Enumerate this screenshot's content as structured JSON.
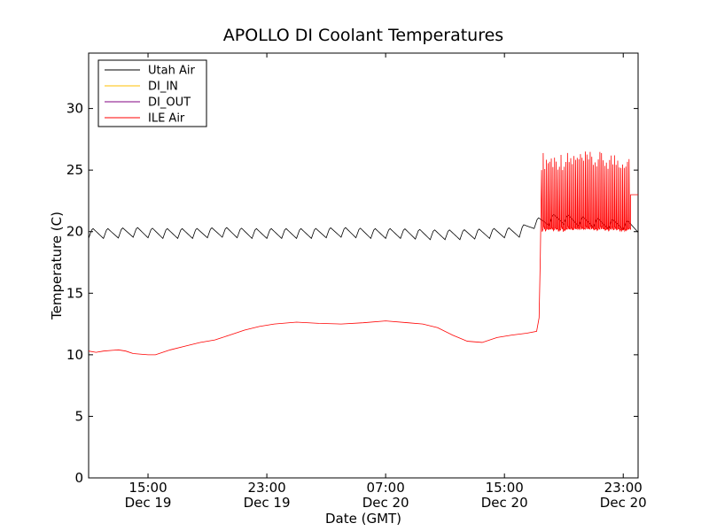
{
  "chart_data": {
    "type": "line",
    "title": "APOLLO DI Coolant Temperatures",
    "xlabel": "Date (GMT)",
    "ylabel": "Temperature (C)",
    "xlim": [
      "2014-12-19 11:00",
      "2014-12-21 00:00"
    ],
    "ylim": [
      0,
      34.5
    ],
    "yticks": [
      0,
      5,
      10,
      15,
      20,
      25,
      30
    ],
    "xticks": [
      {
        "time": "2014-12-19 15:00",
        "line1": "15:00",
        "line2": "Dec 19"
      },
      {
        "time": "2014-12-19 23:00",
        "line1": "23:00",
        "line2": "Dec 19"
      },
      {
        "time": "2014-12-20 07:00",
        "line1": "07:00",
        "line2": "Dec 20"
      },
      {
        "time": "2014-12-20 15:00",
        "line1": "15:00",
        "line2": "Dec 20"
      },
      {
        "time": "2014-12-20 23:00",
        "line1": "23:00",
        "line2": "Dec 20"
      }
    ],
    "grid": false,
    "legend_position": "top-left",
    "series": [
      {
        "name": "Utah Air",
        "color": "#000000",
        "x": [
          "2014-12-19 11:00",
          "2014-12-19 12:30",
          "2014-12-19 14:00",
          "2014-12-19 16:00",
          "2014-12-19 18:00",
          "2014-12-19 20:00",
          "2014-12-19 22:00",
          "2014-12-20 00:00",
          "2014-12-20 02:00",
          "2014-12-20 04:00",
          "2014-12-20 06:00",
          "2014-12-20 08:00",
          "2014-12-20 10:00",
          "2014-12-20 12:00",
          "2014-12-20 14:00",
          "2014-12-20 16:00",
          "2014-12-20 17:00",
          "2014-12-20 18:30",
          "2014-12-20 20:00",
          "2014-12-20 21:30",
          "2014-12-20 23:00",
          "2014-12-21 00:00"
        ],
        "y": [
          19.8,
          19.8,
          19.9,
          19.8,
          19.8,
          19.9,
          19.8,
          19.8,
          19.8,
          19.9,
          19.8,
          19.8,
          19.7,
          19.7,
          19.8,
          19.9,
          20.6,
          21.0,
          20.8,
          20.6,
          20.5,
          20.3
        ],
        "oscillation_amplitude": 0.5,
        "oscillation_period_hours": 1.0
      },
      {
        "name": "DI_IN",
        "color": "#ffbf00",
        "x": [],
        "y": []
      },
      {
        "name": "DI_OUT",
        "color": "#800080",
        "x": [],
        "y": []
      },
      {
        "name": "ILE Air",
        "color": "#ff0000",
        "x": [
          "2014-12-19 11:00",
          "2014-12-19 11:30",
          "2014-12-19 12:00",
          "2014-12-19 13:00",
          "2014-12-19 13:30",
          "2014-12-19 14:00",
          "2014-12-19 15:00",
          "2014-12-19 15:30",
          "2014-12-19 16:30",
          "2014-12-19 17:30",
          "2014-12-19 18:30",
          "2014-12-19 19:30",
          "2014-12-19 20:30",
          "2014-12-19 21:30",
          "2014-12-19 22:30",
          "2014-12-19 23:30",
          "2014-12-20 01:00",
          "2014-12-20 02:30",
          "2014-12-20 04:00",
          "2014-12-20 05:30",
          "2014-12-20 07:00",
          "2014-12-20 08:30",
          "2014-12-20 09:30",
          "2014-12-20 10:30",
          "2014-12-20 11:30",
          "2014-12-20 12:30",
          "2014-12-20 13:30",
          "2014-12-20 14:30",
          "2014-12-20 15:30",
          "2014-12-20 16:30",
          "2014-12-20 17:10",
          "2014-12-20 17:20",
          "2014-12-20 17:25",
          "2014-12-20 17:30"
        ],
        "y": [
          10.3,
          10.2,
          10.3,
          10.4,
          10.3,
          10.1,
          10.0,
          10.0,
          10.4,
          10.7,
          11.0,
          11.2,
          11.6,
          12.0,
          12.3,
          12.5,
          12.65,
          12.55,
          12.5,
          12.6,
          12.75,
          12.6,
          12.5,
          12.2,
          11.6,
          11.1,
          11.0,
          11.4,
          11.6,
          11.75,
          11.9,
          13.0,
          18.0,
          25.0
        ],
        "after_1730": {
          "start": "2014-12-20 17:30",
          "end": "2014-12-20 23:30",
          "baseline": 20.0,
          "peak_min": 25.0,
          "peak_max": 26.5,
          "cycle_count": 55,
          "final_segment": {
            "start": "2014-12-20 23:30",
            "end": "2014-12-21 00:00",
            "value": 23.0
          }
        }
      }
    ]
  }
}
